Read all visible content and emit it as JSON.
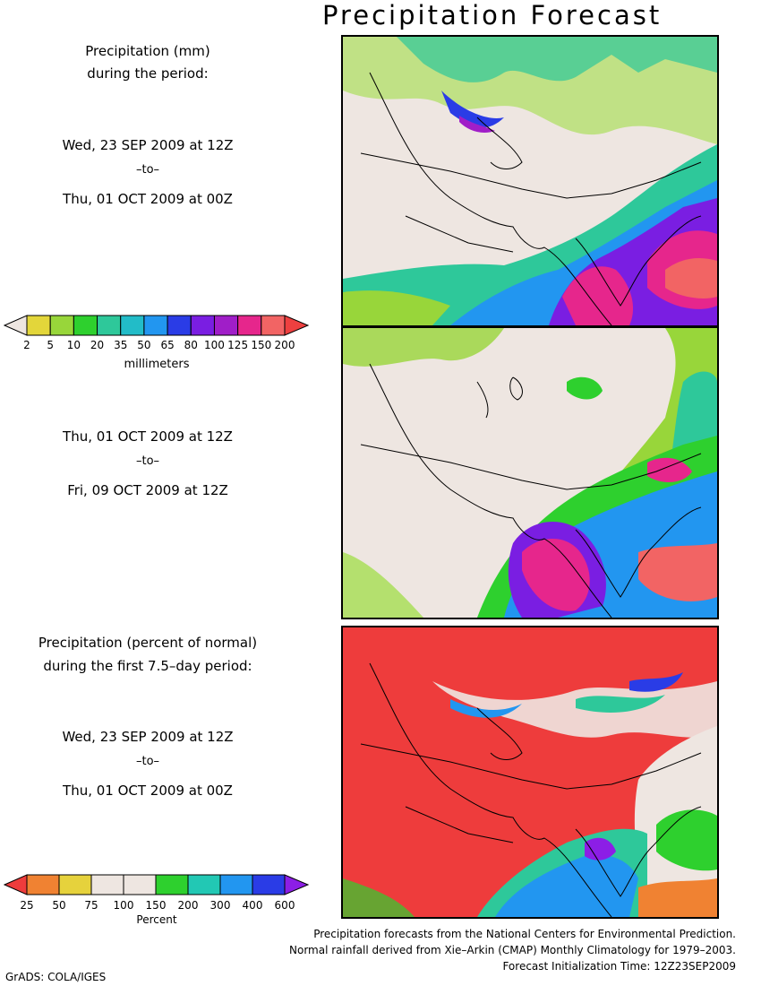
{
  "title": "Precipitation Forecast",
  "panel1": {
    "heading_line1": "Precipitation (mm)",
    "heading_line2": "during the period:",
    "start": "Wed, 23 SEP 2009 at 12Z",
    "to": "–to–",
    "end": "Thu, 01 OCT 2009 at 00Z"
  },
  "panel2": {
    "start": "Thu, 01 OCT 2009 at 12Z",
    "to": "–to–",
    "end": "Fri, 09 OCT 2009 at 12Z"
  },
  "panel3": {
    "heading_line1": "Precipitation (percent of normal)",
    "heading_line2": "during the first 7.5–day period:",
    "start": "Wed, 23 SEP 2009 at 12Z",
    "to": "–to–",
    "end": "Thu, 01 OCT 2009 at 00Z"
  },
  "mm_legend": {
    "unit": "millimeters",
    "labels": [
      "2",
      "5",
      "10",
      "20",
      "35",
      "50",
      "65",
      "80",
      "100",
      "125",
      "150",
      "200"
    ],
    "colors": [
      "#eee6e1",
      "#e3d63a",
      "#98d63a",
      "#2ed02e",
      "#2ec89a",
      "#22bcc8",
      "#2296f0",
      "#2a3ce6",
      "#7a1ee2",
      "#a01ec8",
      "#e6268c",
      "#f26464",
      "#ee4040"
    ]
  },
  "pct_legend": {
    "unit": "Percent",
    "labels": [
      "25",
      "50",
      "75",
      "100",
      "150",
      "200",
      "300",
      "400",
      "600"
    ],
    "colors": [
      "#ee3c3c",
      "#f08232",
      "#e6d23c",
      "#eee6e1",
      "#eee6e1",
      "#2ed02e",
      "#22c8b4",
      "#2296f0",
      "#2a3ce6",
      "#8c1ee6"
    ]
  },
  "credits": {
    "line1": "Precipitation forecasts from the National Centers for Environmental Prediction.",
    "line2": "Normal rainfall derived from Xie–Arkin (CMAP) Monthly Climatology for 1979–2003.",
    "line3": "Forecast Initialization Time: 12Z23SEP2009"
  },
  "software": "GrADS: COLA/IGES"
}
